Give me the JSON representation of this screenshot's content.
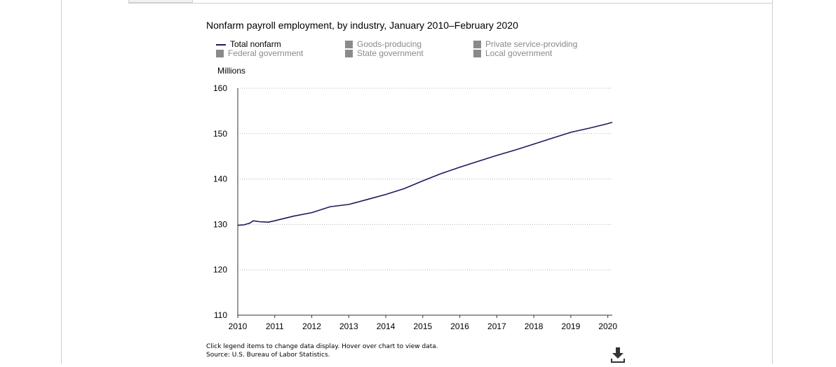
{
  "chart_data": {
    "type": "line",
    "title": "Nonfarm payroll employment, by industry, January 2010–February 2020",
    "ylabel": "Millions",
    "xlabel": "",
    "ylim": [
      110,
      160
    ],
    "yticks": [
      "110",
      "120",
      "130",
      "140",
      "150",
      "160"
    ],
    "xticks": [
      "2010",
      "2011",
      "2012",
      "2013",
      "2014",
      "2015",
      "2016",
      "2017",
      "2018",
      "2019",
      "2020"
    ],
    "grid": true,
    "legend": [
      {
        "name": "Total nonfarm",
        "active": true,
        "color": "#1a1a5e"
      },
      {
        "name": "Goods-producing",
        "active": false,
        "color": "#8a8a8a"
      },
      {
        "name": "Private service-providing",
        "active": false,
        "color": "#8a8a8a"
      },
      {
        "name": "Federal government",
        "active": false,
        "color": "#8a8a8a"
      },
      {
        "name": "State government",
        "active": false,
        "color": "#8a8a8a"
      },
      {
        "name": "Local government",
        "active": false,
        "color": "#8a8a8a"
      }
    ],
    "series": [
      {
        "name": "Total nonfarm",
        "color": "#1a1a5e",
        "points": [
          [
            2010.0,
            129.8
          ],
          [
            2010.17,
            129.9
          ],
          [
            2010.33,
            130.3
          ],
          [
            2010.42,
            130.8
          ],
          [
            2010.58,
            130.6
          ],
          [
            2010.83,
            130.5
          ],
          [
            2011.0,
            130.8
          ],
          [
            2011.5,
            131.8
          ],
          [
            2012.0,
            132.6
          ],
          [
            2012.5,
            133.9
          ],
          [
            2013.0,
            134.4
          ],
          [
            2013.5,
            135.5
          ],
          [
            2014.0,
            136.6
          ],
          [
            2014.5,
            137.9
          ],
          [
            2015.0,
            139.6
          ],
          [
            2015.5,
            141.2
          ],
          [
            2016.0,
            142.6
          ],
          [
            2016.5,
            143.9
          ],
          [
            2017.0,
            145.2
          ],
          [
            2017.5,
            146.4
          ],
          [
            2018.0,
            147.7
          ],
          [
            2018.5,
            149.0
          ],
          [
            2019.0,
            150.3
          ],
          [
            2019.5,
            151.2
          ],
          [
            2020.0,
            152.2
          ],
          [
            2020.12,
            152.5
          ]
        ]
      }
    ]
  },
  "notes": {
    "line1": "Click legend items to change data display. Hover over chart to view data.",
    "line2": "Source: U.S. Bureau of Labor Statistics."
  },
  "icons": {
    "download": "download-icon"
  }
}
